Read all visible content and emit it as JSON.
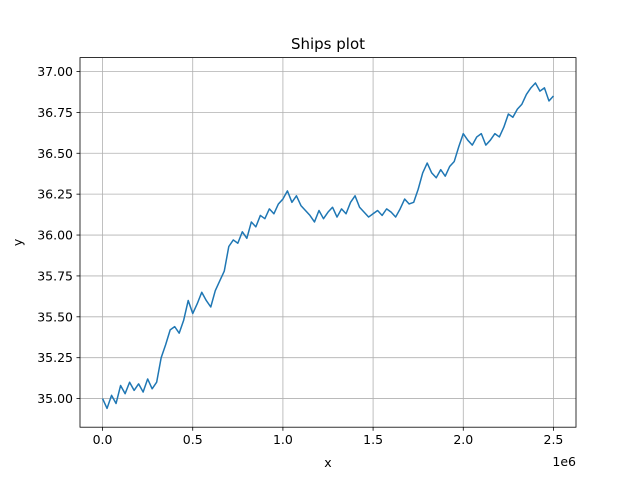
{
  "chart_data": {
    "type": "line",
    "title": "Ships plot",
    "xlabel": "x",
    "ylabel": "y",
    "x_offset_label": "1e6",
    "xlim": [
      -125000,
      2625000
    ],
    "ylim": [
      34.825,
      37.085
    ],
    "x_ticks": [
      0,
      500000,
      1000000,
      1500000,
      2000000,
      2500000
    ],
    "x_tick_labels": [
      "0.0",
      "0.5",
      "1.0",
      "1.5",
      "2.0",
      "2.5"
    ],
    "y_ticks": [
      35.0,
      35.25,
      35.5,
      35.75,
      36.0,
      36.25,
      36.5,
      36.75,
      37.0
    ],
    "y_tick_labels": [
      "35.00",
      "35.25",
      "35.50",
      "35.75",
      "36.00",
      "36.25",
      "36.50",
      "36.75",
      "37.00"
    ],
    "grid": true,
    "series": [
      {
        "color": "#1f77b4",
        "x": [
          0,
          25000,
          50000,
          75000,
          100000,
          125000,
          150000,
          175000,
          200000,
          225000,
          250000,
          275000,
          300000,
          325000,
          350000,
          375000,
          400000,
          425000,
          450000,
          475000,
          500000,
          525000,
          550000,
          575000,
          600000,
          625000,
          650000,
          675000,
          700000,
          725000,
          750000,
          775000,
          800000,
          825000,
          850000,
          875000,
          900000,
          925000,
          950000,
          975000,
          1000000,
          1025000,
          1050000,
          1075000,
          1100000,
          1125000,
          1150000,
          1175000,
          1200000,
          1225000,
          1250000,
          1275000,
          1300000,
          1325000,
          1350000,
          1375000,
          1400000,
          1425000,
          1450000,
          1475000,
          1500000,
          1525000,
          1550000,
          1575000,
          1600000,
          1625000,
          1650000,
          1675000,
          1700000,
          1725000,
          1750000,
          1775000,
          1800000,
          1825000,
          1850000,
          1875000,
          1900000,
          1925000,
          1950000,
          1975000,
          2000000,
          2025000,
          2050000,
          2075000,
          2100000,
          2125000,
          2150000,
          2175000,
          2200000,
          2225000,
          2250000,
          2275000,
          2300000,
          2325000,
          2350000,
          2375000,
          2400000,
          2425000,
          2450000,
          2475000,
          2500000
        ],
        "y": [
          35.0,
          34.94,
          35.02,
          34.97,
          35.08,
          35.03,
          35.1,
          35.05,
          35.09,
          35.04,
          35.12,
          35.06,
          35.1,
          35.25,
          35.33,
          35.42,
          35.44,
          35.4,
          35.48,
          35.6,
          35.52,
          35.58,
          35.65,
          35.6,
          35.56,
          35.66,
          35.72,
          35.78,
          35.93,
          35.97,
          35.95,
          36.02,
          35.98,
          36.08,
          36.05,
          36.12,
          36.1,
          36.16,
          36.13,
          36.19,
          36.22,
          36.27,
          36.2,
          36.24,
          36.18,
          36.15,
          36.12,
          36.08,
          36.15,
          36.1,
          36.14,
          36.17,
          36.11,
          36.16,
          36.13,
          36.2,
          36.24,
          36.17,
          36.14,
          36.11,
          36.13,
          36.15,
          36.12,
          36.16,
          36.14,
          36.11,
          36.16,
          36.22,
          36.19,
          36.2,
          36.28,
          36.38,
          36.44,
          36.38,
          36.35,
          36.4,
          36.36,
          36.42,
          36.45,
          36.54,
          36.62,
          36.58,
          36.55,
          36.6,
          36.62,
          36.55,
          36.58,
          36.62,
          36.6,
          36.66,
          36.74,
          36.72,
          36.77,
          36.8,
          36.86,
          36.9,
          36.93,
          36.88,
          36.9,
          36.82,
          36.85
        ]
      }
    ]
  }
}
